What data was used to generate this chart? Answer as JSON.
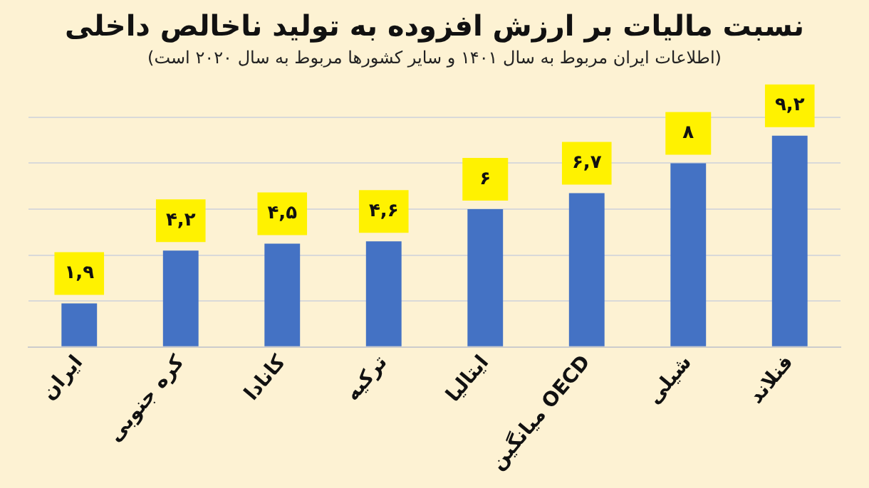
{
  "chart_data": {
    "type": "bar",
    "title": "نسبت مالیات بر ارزش افزوده به تولید ناخالص داخلی",
    "subtitle": "(اطلاعات ایران مربوط به سال ۱۴۰۱ و سایر کشورها مربوط به سال ۲۰۲۰ است)",
    "categories": [
      "ایران",
      "کره جنوبی",
      "کانادا",
      "ترکیه",
      "ایتالیا",
      "میانگین OECD",
      "شیلی",
      "فنلاند"
    ],
    "values": [
      1.9,
      4.2,
      4.5,
      4.6,
      6,
      6.7,
      8,
      9.2
    ],
    "value_labels": [
      "۱,۹",
      "۴,۲",
      "۴,۵",
      "۴,۶",
      "۶",
      "۶,۷",
      "۸",
      "۹,۲"
    ],
    "color": "#4472c4",
    "ylim": [
      0,
      10
    ],
    "yticks": [
      {
        "value": 0,
        "label": null
      },
      {
        "value": 2,
        "label": null
      },
      {
        "value": 4,
        "label": null
      },
      {
        "value": 6,
        "label": null
      },
      {
        "value": 8,
        "label": null
      },
      {
        "value": 10,
        "label": null
      }
    ],
    "grid": "y",
    "tick_labels": "x",
    "legend": false
  }
}
